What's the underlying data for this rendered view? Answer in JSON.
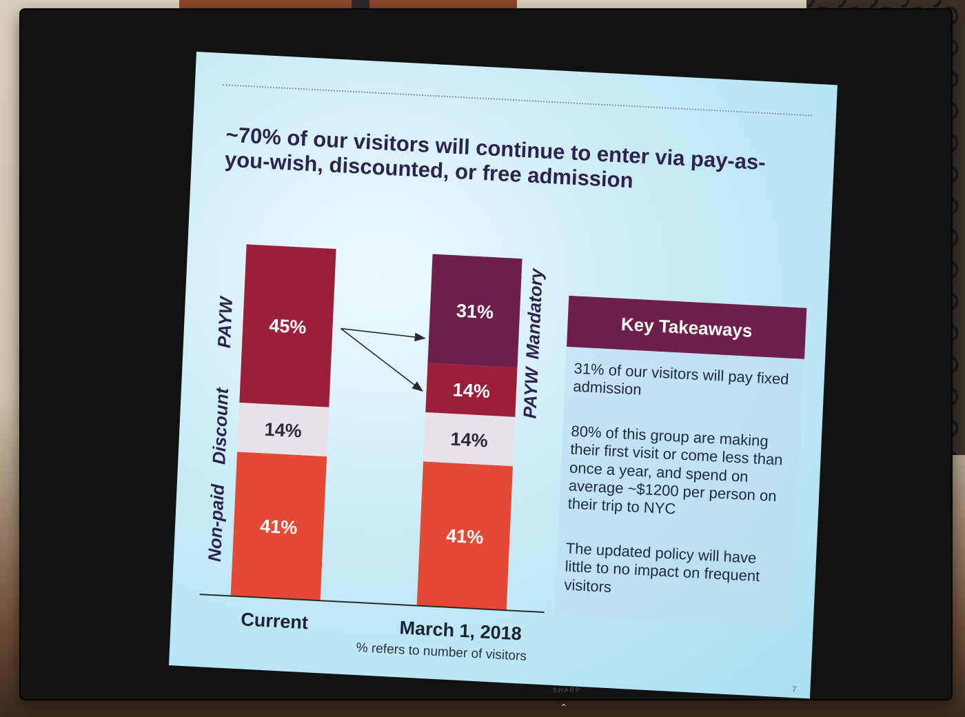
{
  "slide": {
    "title": "~70% of our visitors will continue to enter via pay-as-you-wish, discounted, or free admission",
    "footnote": "% refers to number of visitors",
    "page_number": "7"
  },
  "takeaways": {
    "heading": "Key Takeaways",
    "items": [
      "31% of our visitors will pay fixed admission",
      "80% of this group are making their first visit or come less than once a year, and spend on average ~$1200 per person on their trip to NYC",
      "The updated policy will have little to no impact on frequent visitors"
    ]
  },
  "bezel": {
    "brand": "SHARP"
  },
  "chart_data": {
    "type": "bar",
    "stacked": true,
    "categories": [
      "Current",
      "March 1, 2018"
    ],
    "series": [
      {
        "name": "Non-paid",
        "values": [
          41,
          41
        ],
        "color": "#e24a33"
      },
      {
        "name": "Discount",
        "values": [
          14,
          14
        ],
        "color": "#e9e1ea"
      },
      {
        "name": "PAYW",
        "values": [
          45,
          14
        ],
        "color": "#9b1f3b"
      },
      {
        "name": "Mandatory",
        "values": [
          0,
          31
        ],
        "color": "#6e1f4a"
      }
    ],
    "labels": [
      [
        "41%",
        "14%",
        "45%",
        ""
      ],
      [
        "41%",
        "14%",
        "14%",
        "31%"
      ]
    ],
    "left_axis_labels": [
      "Non-paid",
      "Discount",
      "PAYW"
    ],
    "right_axis_labels": [
      "PAYW",
      "Mandatory"
    ],
    "arrows": "PAYW 45% splits into PAYW 14% and Mandatory 31%",
    "ylim": [
      0,
      100
    ]
  }
}
